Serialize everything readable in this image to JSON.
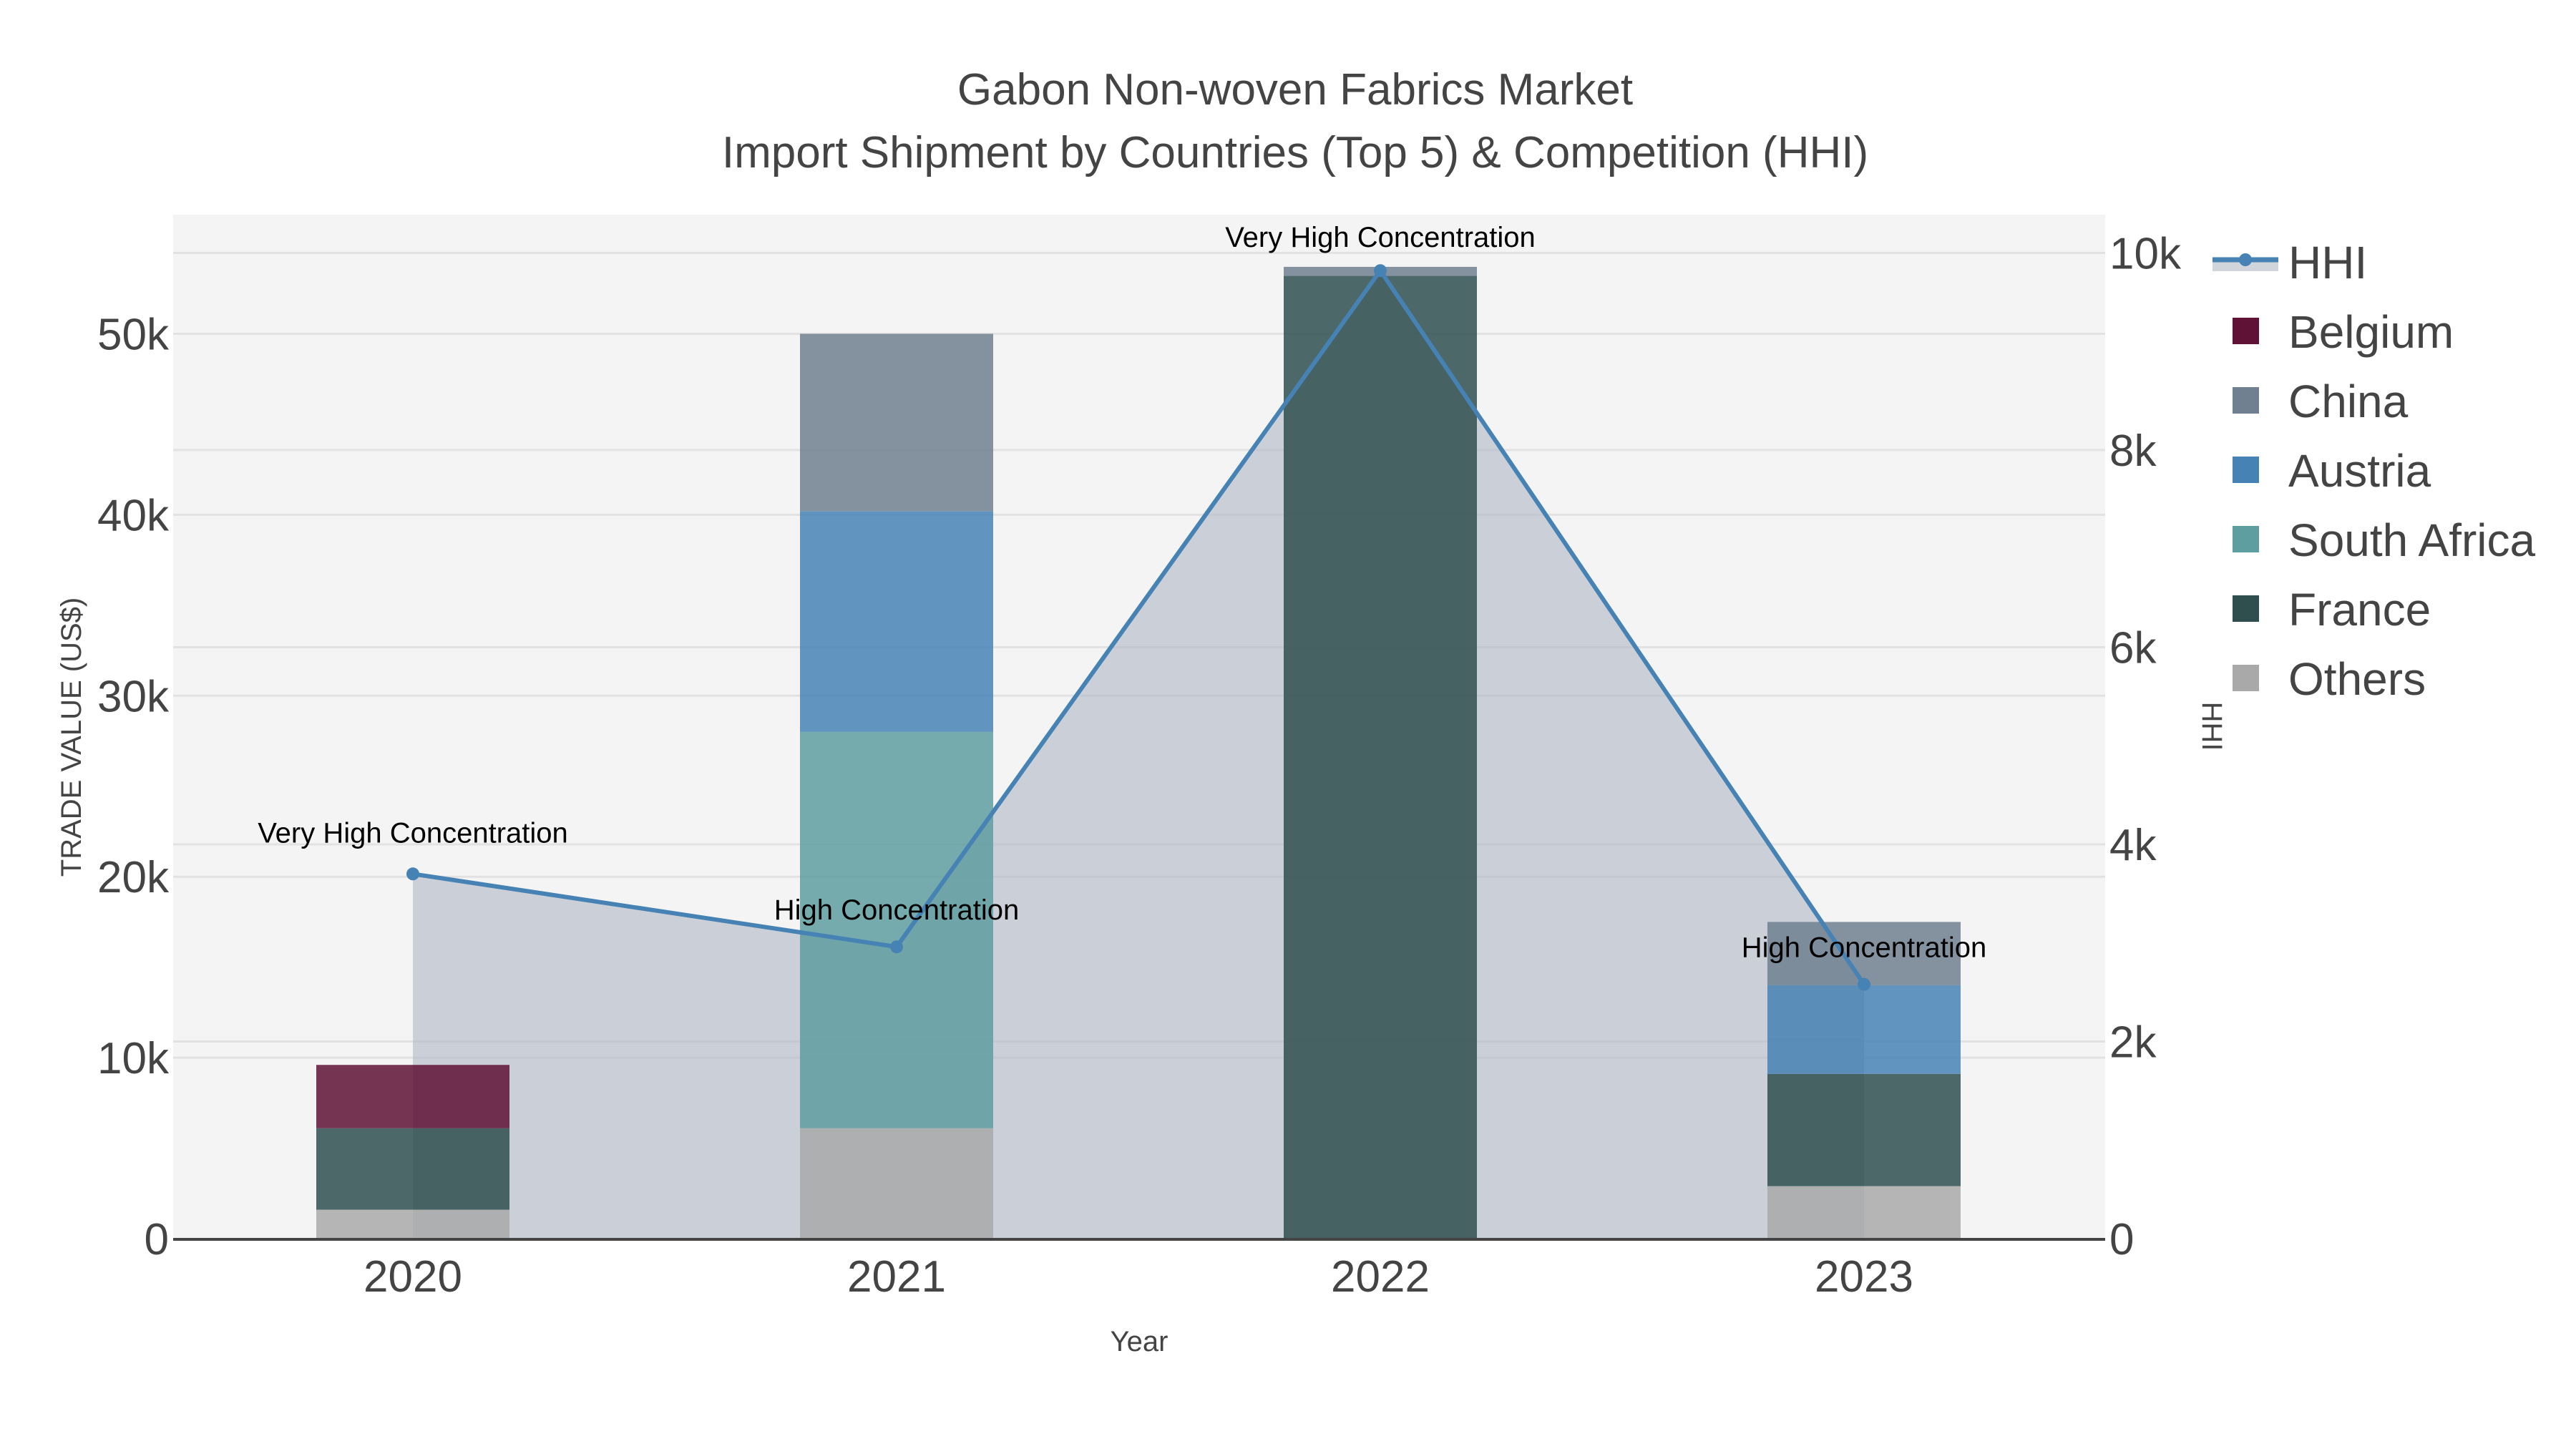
{
  "title": {
    "line1": "Gabon Non-woven Fabrics Market",
    "line2": "Import Shipment by Countries (Top 5) & Competition (HHI)"
  },
  "axes": {
    "x_title": "Year",
    "y_left_title": "TRADE VALUE (US$)",
    "y_right_title": "HHI",
    "y_left_ticks": [
      "0",
      "10k",
      "20k",
      "30k",
      "40k",
      "50k"
    ],
    "y_right_ticks": [
      "0",
      "2k",
      "4k",
      "6k",
      "8k",
      "10k"
    ],
    "x_ticks": [
      "2020",
      "2021",
      "2022",
      "2023"
    ]
  },
  "legend": [
    {
      "name": "HHI",
      "type": "line",
      "color": "#4682b4"
    },
    {
      "name": "Belgium",
      "type": "bar",
      "color": "#5f1236"
    },
    {
      "name": "China",
      "type": "bar",
      "color": "#708090"
    },
    {
      "name": "Austria",
      "type": "bar",
      "color": "#4682b4"
    },
    {
      "name": "South Africa",
      "type": "bar",
      "color": "#5f9ea0"
    },
    {
      "name": "France",
      "type": "bar",
      "color": "#2f4f4f"
    },
    {
      "name": "Others",
      "type": "bar",
      "color": "#a9a9a9"
    }
  ],
  "annotations": [
    {
      "year": "2020",
      "text": "Very High Concentration"
    },
    {
      "year": "2021",
      "text": "High Concentration"
    },
    {
      "year": "2022",
      "text": "Very High Concentration"
    },
    {
      "year": "2023",
      "text": "High Concentration"
    }
  ],
  "chart_data": {
    "type": "bar",
    "title": "Gabon Non-woven Fabrics Market - Import Shipment by Countries (Top 5) & Competition (HHI)",
    "xlabel": "Year",
    "ylabel": "TRADE VALUE (US$)",
    "y2label": "HHI",
    "categories": [
      "2020",
      "2021",
      "2022",
      "2023"
    ],
    "stacked": true,
    "ylim": [
      0,
      56000
    ],
    "y2lim": [
      0,
      10400
    ],
    "grid": true,
    "legend_position": "right",
    "series": [
      {
        "name": "Others",
        "color": "#a9a9a9",
        "values": [
          1600,
          6100,
          0,
          2900
        ]
      },
      {
        "name": "France",
        "color": "#2f4f4f",
        "values": [
          4500,
          0,
          53200,
          6200
        ]
      },
      {
        "name": "South Africa",
        "color": "#5f9ea0",
        "values": [
          0,
          21900,
          0,
          0
        ]
      },
      {
        "name": "Austria",
        "color": "#4682b4",
        "values": [
          0,
          12200,
          0,
          4900
        ]
      },
      {
        "name": "China",
        "color": "#708090",
        "values": [
          0,
          9800,
          500,
          3500
        ]
      },
      {
        "name": "Belgium",
        "color": "#5f1236",
        "values": [
          3500,
          0,
          0,
          0
        ]
      }
    ],
    "line_series": {
      "name": "HHI",
      "axis": "y2",
      "type": "line+area",
      "color": "#4682b4",
      "values": [
        3700,
        2960,
        9820,
        2580
      ],
      "labels": [
        "Very High Concentration",
        "High Concentration",
        "Very High Concentration",
        "High Concentration"
      ]
    }
  }
}
